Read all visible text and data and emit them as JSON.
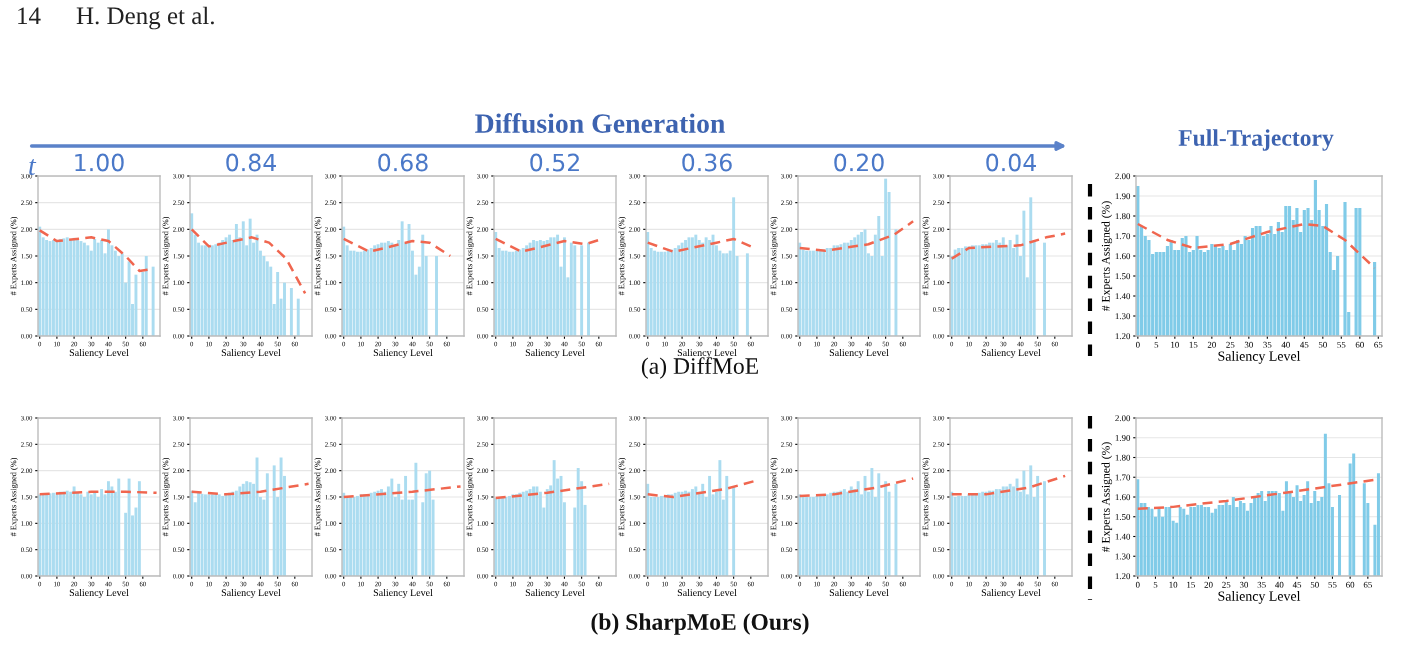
{
  "chart_data": [
    {
      "type": "bar",
      "title": "1.00",
      "annotations": [
        "14",
        "H. Deng et al.",
        "Diffusion Generation",
        "t",
        "Full-Trajectory",
        "(a) DiffMoE",
        "(b) SharpMoE (Ours)"
      ],
      "xlabel": "Saliency Level",
      "ylabel": "# Experts Assigned (%)",
      "x": [
        0,
        2,
        4,
        6,
        8,
        10,
        12,
        14,
        16,
        18,
        20,
        22,
        24,
        26,
        28,
        30,
        32,
        34,
        36,
        38,
        40,
        42,
        44,
        46,
        48,
        50,
        52,
        54,
        56,
        58,
        60,
        62,
        64,
        66
      ],
      "xlim": [
        -1,
        70
      ],
      "ylim": [
        0,
        3
      ],
      "xticks": [
        0,
        10,
        20,
        30,
        40,
        50,
        60
      ],
      "yticks": [
        {
          "value": 0,
          "label": "0.00"
        },
        {
          "value": 0.5,
          "label": "0.50"
        },
        {
          "value": 1,
          "label": "1.00"
        },
        {
          "value": 1.5,
          "label": "1.50"
        },
        {
          "value": 2,
          "label": "2.00"
        },
        {
          "value": 2.5,
          "label": "2.50"
        },
        {
          "value": 3,
          "label": "3.00"
        }
      ],
      "grid": "y",
      "series": [
        {
          "type": "bar",
          "color": "#abdcf0",
          "values": [
            2.05,
            1.85,
            1.8,
            1.78,
            1.8,
            1.8,
            1.82,
            1.83,
            1.85,
            1.82,
            1.84,
            1.8,
            1.78,
            1.75,
            1.7,
            1.6,
            1.82,
            1.75,
            1.8,
            1.55,
            2.0,
            1.7,
            1.6,
            1.5,
            1.55,
            1.0,
            1.4,
            0.6,
            1.15,
            null,
            1.2,
            1.5,
            null,
            1.3
          ]
        },
        {
          "type": "line",
          "color": "#f0664f",
          "line_style": "dashed",
          "x": [
            0,
            10,
            30,
            40,
            50,
            58,
            64
          ],
          "values": [
            1.98,
            1.78,
            1.85,
            1.78,
            1.5,
            1.22,
            1.25
          ]
        }
      ]
    },
    {
      "type": "bar",
      "title": "0.84",
      "xlabel": "Saliency Level",
      "ylabel": "# Experts Assigned (%)",
      "x": [
        0,
        2,
        4,
        6,
        8,
        10,
        12,
        14,
        16,
        18,
        20,
        22,
        24,
        26,
        28,
        30,
        32,
        34,
        36,
        38,
        40,
        42,
        44,
        46,
        48,
        50,
        52,
        54,
        56,
        58,
        60,
        62
      ],
      "xlim": [
        -1,
        70
      ],
      "ylim": [
        0,
        3
      ],
      "xticks": [
        0,
        10,
        20,
        30,
        40,
        50,
        60
      ],
      "yticks": [
        {
          "value": 0,
          "label": "0.00"
        },
        {
          "value": 0.5,
          "label": "0.50"
        },
        {
          "value": 1,
          "label": "1.00"
        },
        {
          "value": 1.5,
          "label": "1.50"
        },
        {
          "value": 2,
          "label": "2.00"
        },
        {
          "value": 2.5,
          "label": "2.50"
        },
        {
          "value": 3,
          "label": "3.00"
        }
      ],
      "grid": "y",
      "series": [
        {
          "type": "bar",
          "color": "#abdcf0",
          "values": [
            2.3,
            1.9,
            1.75,
            1.7,
            1.7,
            1.68,
            1.7,
            1.72,
            1.75,
            1.8,
            1.85,
            1.9,
            1.8,
            2.1,
            1.85,
            2.15,
            1.7,
            2.2,
            1.75,
            1.9,
            1.6,
            1.5,
            1.4,
            1.3,
            0.6,
            1.2,
            0.7,
            1.0,
            null,
            0.9,
            null,
            0.7
          ]
        },
        {
          "type": "line",
          "color": "#f0664f",
          "line_style": "dashed",
          "x": [
            0,
            10,
            35,
            45,
            55,
            66
          ],
          "values": [
            2.0,
            1.68,
            1.85,
            1.75,
            1.45,
            0.8
          ]
        }
      ]
    },
    {
      "type": "bar",
      "title": "0.68",
      "xlabel": "Saliency Level",
      "ylabel": "# Experts Assigned (%)",
      "x": [
        0,
        2,
        4,
        6,
        8,
        10,
        12,
        14,
        16,
        18,
        20,
        22,
        24,
        26,
        28,
        30,
        32,
        34,
        36,
        38,
        40,
        42,
        44,
        46,
        48,
        50,
        52,
        54
      ],
      "xlim": [
        -1,
        70
      ],
      "ylim": [
        0,
        3
      ],
      "xticks": [
        0,
        10,
        20,
        30,
        40,
        50,
        60
      ],
      "yticks": [
        {
          "value": 0,
          "label": "0.00"
        },
        {
          "value": 0.5,
          "label": "0.50"
        },
        {
          "value": 1,
          "label": "1.00"
        },
        {
          "value": 1.5,
          "label": "1.50"
        },
        {
          "value": 2,
          "label": "2.00"
        },
        {
          "value": 2.5,
          "label": "2.50"
        },
        {
          "value": 3,
          "label": "3.00"
        }
      ],
      "grid": "y",
      "series": [
        {
          "type": "bar",
          "color": "#abdcf0",
          "values": [
            2.05,
            1.7,
            1.6,
            1.6,
            1.58,
            1.58,
            1.6,
            1.62,
            1.65,
            1.7,
            1.72,
            1.75,
            1.75,
            1.78,
            1.75,
            1.7,
            1.8,
            2.15,
            1.75,
            2.1,
            1.6,
            1.15,
            1.3,
            1.9,
            1.5,
            null,
            null,
            1.5
          ]
        },
        {
          "type": "line",
          "color": "#f0664f",
          "line_style": "dashed",
          "x": [
            0,
            15,
            40,
            50,
            62
          ],
          "values": [
            1.82,
            1.58,
            1.78,
            1.75,
            1.5
          ]
        }
      ]
    },
    {
      "type": "bar",
      "title": "0.52",
      "xlabel": "Saliency Level",
      "ylabel": "# Experts Assigned (%)",
      "x": [
        0,
        2,
        4,
        6,
        8,
        10,
        12,
        14,
        16,
        18,
        20,
        22,
        24,
        26,
        28,
        30,
        32,
        34,
        36,
        38,
        40,
        42,
        44,
        46,
        48,
        50,
        52,
        54
      ],
      "xlim": [
        -1,
        70
      ],
      "ylim": [
        0,
        3
      ],
      "xticks": [
        0,
        10,
        20,
        30,
        40,
        50,
        60
      ],
      "yticks": [
        {
          "value": 0,
          "label": "0.00"
        },
        {
          "value": 0.5,
          "label": "0.50"
        },
        {
          "value": 1,
          "label": "1.00"
        },
        {
          "value": 1.5,
          "label": "1.50"
        },
        {
          "value": 2,
          "label": "2.00"
        },
        {
          "value": 2.5,
          "label": "2.50"
        },
        {
          "value": 3,
          "label": "3.00"
        }
      ],
      "grid": "y",
      "series": [
        {
          "type": "bar",
          "color": "#abdcf0",
          "values": [
            1.95,
            1.65,
            1.6,
            1.6,
            1.58,
            1.58,
            1.6,
            1.62,
            1.65,
            1.7,
            1.75,
            1.8,
            1.78,
            1.8,
            1.78,
            1.8,
            1.85,
            1.85,
            1.9,
            1.3,
            1.85,
            1.1,
            1.75,
            1.7,
            null,
            1.7,
            null,
            1.75
          ]
        },
        {
          "type": "line",
          "color": "#f0664f",
          "line_style": "dashed",
          "x": [
            0,
            15,
            40,
            52,
            60
          ],
          "values": [
            1.82,
            1.58,
            1.78,
            1.72,
            1.8
          ]
        }
      ]
    },
    {
      "type": "bar",
      "title": "0.36",
      "xlabel": "Saliency Level",
      "ylabel": "# Experts Assigned (%)",
      "x": [
        0,
        2,
        4,
        6,
        8,
        10,
        12,
        14,
        16,
        18,
        20,
        22,
        24,
        26,
        28,
        30,
        32,
        34,
        36,
        38,
        40,
        42,
        44,
        46,
        48,
        50,
        52,
        54,
        56,
        58
      ],
      "xlim": [
        -1,
        70
      ],
      "ylim": [
        0,
        3
      ],
      "xticks": [
        0,
        10,
        20,
        30,
        40,
        50,
        60
      ],
      "yticks": [
        {
          "value": 0,
          "label": "0.00"
        },
        {
          "value": 0.5,
          "label": "0.50"
        },
        {
          "value": 1,
          "label": "1.00"
        },
        {
          "value": 1.5,
          "label": "1.50"
        },
        {
          "value": 2,
          "label": "2.00"
        },
        {
          "value": 2.5,
          "label": "2.50"
        },
        {
          "value": 3,
          "label": "3.00"
        }
      ],
      "grid": "y",
      "series": [
        {
          "type": "bar",
          "color": "#abdcf0",
          "values": [
            1.95,
            1.65,
            1.6,
            1.58,
            1.58,
            1.58,
            1.6,
            1.62,
            1.65,
            1.7,
            1.75,
            1.8,
            1.85,
            1.85,
            1.9,
            1.8,
            1.75,
            1.85,
            1.8,
            1.9,
            1.7,
            1.6,
            1.55,
            1.55,
            1.6,
            2.6,
            1.5,
            null,
            null,
            1.55
          ]
        },
        {
          "type": "line",
          "color": "#f0664f",
          "line_style": "dashed",
          "x": [
            0,
            15,
            40,
            50,
            62
          ],
          "values": [
            1.75,
            1.58,
            1.75,
            1.82,
            1.65
          ]
        }
      ]
    },
    {
      "type": "bar",
      "title": "0.20",
      "xlabel": "Saliency Level",
      "ylabel": "# Experts Assigned (%)",
      "x": [
        0,
        2,
        4,
        6,
        8,
        10,
        12,
        14,
        16,
        18,
        20,
        22,
        24,
        26,
        28,
        30,
        32,
        34,
        36,
        38,
        40,
        42,
        44,
        46,
        48,
        50,
        52,
        54,
        56
      ],
      "xlim": [
        -1,
        70
      ],
      "ylim": [
        0,
        3
      ],
      "xticks": [
        0,
        10,
        20,
        30,
        40,
        50,
        60
      ],
      "yticks": [
        {
          "value": 0,
          "label": "0.00"
        },
        {
          "value": 0.5,
          "label": "0.50"
        },
        {
          "value": 1,
          "label": "1.00"
        },
        {
          "value": 1.5,
          "label": "1.50"
        },
        {
          "value": 2,
          "label": "2.00"
        },
        {
          "value": 2.5,
          "label": "2.50"
        },
        {
          "value": 3,
          "label": "3.00"
        }
      ],
      "grid": "y",
      "series": [
        {
          "type": "bar",
          "color": "#abdcf0",
          "values": [
            1.75,
            1.62,
            1.6,
            1.6,
            1.6,
            1.6,
            1.62,
            1.62,
            1.65,
            1.65,
            1.7,
            1.7,
            1.72,
            1.75,
            1.75,
            1.8,
            1.85,
            1.9,
            1.95,
            2.0,
            1.55,
            1.5,
            1.9,
            2.25,
            1.5,
            2.95,
            2.7,
            null,
            2.0
          ]
        },
        {
          "type": "line",
          "color": "#f0664f",
          "line_style": "dashed",
          "x": [
            0,
            15,
            40,
            55,
            66
          ],
          "values": [
            1.65,
            1.6,
            1.72,
            1.9,
            2.15
          ]
        }
      ]
    },
    {
      "type": "bar",
      "title": "0.04",
      "xlabel": "Saliency Level",
      "ylabel": "# Experts Assigned (%)",
      "x": [
        0,
        2,
        4,
        6,
        8,
        10,
        12,
        14,
        16,
        18,
        20,
        22,
        24,
        26,
        28,
        30,
        32,
        34,
        36,
        38,
        40,
        42,
        44,
        46,
        48,
        50,
        52,
        54
      ],
      "xlim": [
        -1,
        70
      ],
      "ylim": [
        0,
        3
      ],
      "xticks": [
        0,
        10,
        20,
        30,
        40,
        50,
        60
      ],
      "yticks": [
        {
          "value": 0,
          "label": "0.00"
        },
        {
          "value": 0.5,
          "label": "0.50"
        },
        {
          "value": 1,
          "label": "1.00"
        },
        {
          "value": 1.5,
          "label": "1.50"
        },
        {
          "value": 2,
          "label": "2.00"
        },
        {
          "value": 2.5,
          "label": "2.50"
        },
        {
          "value": 3,
          "label": "3.00"
        }
      ],
      "grid": "y",
      "series": [
        {
          "type": "bar",
          "color": "#abdcf0",
          "values": [
            1.5,
            1.62,
            1.65,
            1.65,
            1.68,
            1.68,
            1.7,
            1.7,
            1.7,
            1.72,
            1.72,
            1.75,
            1.75,
            1.8,
            1.75,
            1.85,
            1.7,
            1.8,
            1.65,
            1.9,
            1.5,
            2.35,
            1.1,
            2.6,
            1.8,
            null,
            null,
            1.75
          ]
        },
        {
          "type": "line",
          "color": "#f0664f",
          "line_style": "dashed",
          "x": [
            0,
            10,
            40,
            55,
            66
          ],
          "values": [
            1.45,
            1.65,
            1.7,
            1.85,
            1.92
          ]
        }
      ]
    },
    {
      "type": "bar",
      "xlabel": "Saliency Level",
      "ylabel": "# Experts Assigned (%)",
      "x": [
        0,
        1,
        2,
        3,
        4,
        5,
        6,
        7,
        8,
        9,
        10,
        11,
        12,
        13,
        14,
        15,
        16,
        17,
        18,
        19,
        20,
        21,
        22,
        23,
        24,
        25,
        26,
        27,
        28,
        29,
        30,
        31,
        32,
        33,
        34,
        35,
        36,
        37,
        38,
        39,
        40,
        41,
        42,
        43,
        44,
        45,
        46,
        47,
        48,
        49,
        50,
        51,
        52,
        53,
        54,
        55,
        56,
        57,
        58,
        59,
        60,
        61,
        62,
        63,
        64
      ],
      "xlim": [
        -0.5,
        66
      ],
      "ylim": [
        1.2,
        2.0
      ],
      "xticks": [
        0,
        5,
        10,
        15,
        20,
        25,
        30,
        35,
        40,
        45,
        50,
        55,
        60,
        65
      ],
      "yticks": [
        {
          "value": 1.2,
          "label": "1.20"
        },
        {
          "value": 1.3,
          "label": "1.30"
        },
        {
          "value": 1.4,
          "label": "1.40"
        },
        {
          "value": 1.5,
          "label": "1.50"
        },
        {
          "value": 1.6,
          "label": "1.60"
        },
        {
          "value": 1.7,
          "label": "1.70"
        },
        {
          "value": 1.8,
          "label": "1.80"
        },
        {
          "value": 1.9,
          "label": "1.90"
        },
        {
          "value": 2.0,
          "label": "2.00"
        }
      ],
      "grid": "y",
      "series": [
        {
          "type": "bar",
          "color": "#80cbe8",
          "values": [
            1.95,
            1.75,
            1.7,
            1.68,
            1.61,
            1.62,
            1.62,
            1.62,
            1.65,
            1.68,
            1.63,
            1.63,
            1.69,
            1.7,
            1.62,
            1.63,
            1.7,
            1.63,
            1.62,
            1.63,
            1.66,
            1.65,
            1.64,
            1.65,
            1.63,
            1.66,
            1.63,
            1.68,
            1.66,
            1.7,
            1.68,
            1.74,
            1.75,
            1.75,
            1.7,
            1.71,
            1.75,
            1.71,
            1.77,
            1.72,
            1.85,
            1.85,
            1.78,
            1.84,
            1.72,
            1.83,
            1.84,
            1.78,
            1.98,
            1.83,
            1.75,
            1.86,
            1.62,
            1.53,
            1.6,
            null,
            1.87,
            1.32,
            null,
            1.84,
            1.84,
            null,
            null,
            null,
            1.57
          ]
        },
        {
          "type": "line",
          "color": "#f0664f",
          "line_style": "dashed",
          "x": [
            0,
            8,
            15,
            25,
            35,
            45,
            50,
            56,
            64
          ],
          "values": [
            1.76,
            1.68,
            1.64,
            1.66,
            1.72,
            1.76,
            1.75,
            1.68,
            1.54
          ]
        }
      ]
    },
    {
      "type": "bar",
      "xlabel": "Saliency Level",
      "ylabel": "# Experts Assigned (%)",
      "x": [
        0,
        2,
        4,
        6,
        8,
        10,
        12,
        14,
        16,
        18,
        20,
        22,
        24,
        26,
        28,
        30,
        32,
        34,
        36,
        38,
        40,
        42,
        44,
        46,
        48,
        50,
        52,
        54,
        56,
        58
      ],
      "xlim": [
        -1,
        70
      ],
      "ylim": [
        0,
        3
      ],
      "xticks": [
        0,
        10,
        20,
        30,
        40,
        50,
        60
      ],
      "yticks": [
        {
          "value": 0,
          "label": "0.00"
        },
        {
          "value": 0.5,
          "label": "0.50"
        },
        {
          "value": 1,
          "label": "1.00"
        },
        {
          "value": 1.5,
          "label": "1.50"
        },
        {
          "value": 2,
          "label": "2.00"
        },
        {
          "value": 2.5,
          "label": "2.50"
        },
        {
          "value": 3,
          "label": "3.00"
        }
      ],
      "grid": "y",
      "series": [
        {
          "type": "bar",
          "color": "#abdcf0",
          "values": [
            1.55,
            1.55,
            1.56,
            1.57,
            1.58,
            1.58,
            1.6,
            1.6,
            1.62,
            1.6,
            1.7,
            1.58,
            1.55,
            1.5,
            1.6,
            1.55,
            1.6,
            1.5,
            1.65,
            1.55,
            1.8,
            1.7,
            1.6,
            1.85,
            null,
            1.2,
            1.85,
            1.15,
            1.3,
            1.8
          ]
        },
        {
          "type": "line",
          "color": "#f0664f",
          "line_style": "dashed",
          "x": [
            0,
            30,
            50,
            68
          ],
          "values": [
            1.55,
            1.6,
            1.6,
            1.58
          ]
        }
      ]
    },
    {
      "type": "bar",
      "xlabel": "Saliency Level",
      "ylabel": "# Experts Assigned (%)",
      "x": [
        0,
        2,
        4,
        6,
        8,
        10,
        12,
        14,
        16,
        18,
        20,
        22,
        24,
        26,
        28,
        30,
        32,
        34,
        36,
        38,
        40,
        42,
        44,
        46,
        48,
        50,
        52,
        54
      ],
      "xlim": [
        -1,
        70
      ],
      "ylim": [
        0,
        3
      ],
      "xticks": [
        0,
        10,
        20,
        30,
        40,
        50,
        60
      ],
      "yticks": [
        {
          "value": 0,
          "label": "0.00"
        },
        {
          "value": 0.5,
          "label": "0.50"
        },
        {
          "value": 1,
          "label": "1.00"
        },
        {
          "value": 1.5,
          "label": "1.50"
        },
        {
          "value": 2,
          "label": "2.00"
        },
        {
          "value": 2.5,
          "label": "2.50"
        },
        {
          "value": 3,
          "label": "3.00"
        }
      ],
      "grid": "y",
      "series": [
        {
          "type": "bar",
          "color": "#abdcf0",
          "values": [
            1.62,
            1.4,
            1.58,
            1.56,
            1.55,
            1.55,
            1.55,
            1.55,
            1.55,
            1.52,
            1.55,
            1.58,
            1.6,
            1.62,
            1.7,
            1.75,
            1.8,
            1.78,
            1.75,
            2.25,
            1.5,
            1.45,
            1.95,
            null,
            2.1,
            1.5,
            2.25,
            1.9
          ]
        },
        {
          "type": "line",
          "color": "#f0664f",
          "line_style": "dashed",
          "x": [
            0,
            20,
            40,
            68
          ],
          "values": [
            1.6,
            1.55,
            1.6,
            1.75
          ]
        }
      ]
    },
    {
      "type": "bar",
      "xlabel": "Saliency Level",
      "ylabel": "# Experts Assigned (%)",
      "x": [
        0,
        2,
        4,
        6,
        8,
        10,
        12,
        14,
        16,
        18,
        20,
        22,
        24,
        26,
        28,
        30,
        32,
        34,
        36,
        38,
        40,
        42,
        44,
        46,
        48,
        50,
        52
      ],
      "xlim": [
        -1,
        70
      ],
      "ylim": [
        0,
        3
      ],
      "xticks": [
        0,
        10,
        20,
        30,
        40,
        50,
        60
      ],
      "yticks": [
        {
          "value": 0,
          "label": "0.00"
        },
        {
          "value": 0.5,
          "label": "0.50"
        },
        {
          "value": 1,
          "label": "1.00"
        },
        {
          "value": 1.5,
          "label": "1.50"
        },
        {
          "value": 2,
          "label": "2.00"
        },
        {
          "value": 2.5,
          "label": "2.50"
        },
        {
          "value": 3,
          "label": "3.00"
        }
      ],
      "grid": "y",
      "series": [
        {
          "type": "bar",
          "color": "#abdcf0",
          "values": [
            1.58,
            1.52,
            1.5,
            1.5,
            1.52,
            1.55,
            1.55,
            1.55,
            1.58,
            1.6,
            1.62,
            1.65,
            1.6,
            1.7,
            1.85,
            1.5,
            1.75,
            1.45,
            1.9,
            1.45,
            1.45,
            2.15,
            null,
            1.4,
            1.95,
            2.0,
            1.45
          ]
        },
        {
          "type": "line",
          "color": "#f0664f",
          "line_style": "dashed",
          "x": [
            0,
            40,
            68
          ],
          "values": [
            1.5,
            1.6,
            1.7
          ]
        }
      ]
    },
    {
      "type": "bar",
      "xlabel": "Saliency Level",
      "ylabel": "# Experts Assigned (%)",
      "x": [
        0,
        2,
        4,
        6,
        8,
        10,
        12,
        14,
        16,
        18,
        20,
        22,
        24,
        26,
        28,
        30,
        32,
        34,
        36,
        38,
        40,
        42,
        44,
        46,
        48,
        50,
        52
      ],
      "xlim": [
        -1,
        70
      ],
      "ylim": [
        0,
        3
      ],
      "xticks": [
        0,
        10,
        20,
        30,
        40,
        50,
        60
      ],
      "yticks": [
        {
          "value": 0,
          "label": "0.00"
        },
        {
          "value": 0.5,
          "label": "0.50"
        },
        {
          "value": 1,
          "label": "1.00"
        },
        {
          "value": 1.5,
          "label": "1.50"
        },
        {
          "value": 2,
          "label": "2.00"
        },
        {
          "value": 2.5,
          "label": "2.50"
        },
        {
          "value": 3,
          "label": "3.00"
        }
      ],
      "grid": "y",
      "series": [
        {
          "type": "bar",
          "color": "#abdcf0",
          "values": [
            1.48,
            1.48,
            1.5,
            1.5,
            1.52,
            1.55,
            1.55,
            1.58,
            1.6,
            1.62,
            1.65,
            1.7,
            1.7,
            1.6,
            1.3,
            1.65,
            1.72,
            2.2,
            1.85,
            1.9,
            1.4,
            null,
            null,
            1.3,
            2.05,
            1.8,
            1.35
          ]
        },
        {
          "type": "line",
          "color": "#f0664f",
          "line_style": "dashed",
          "x": [
            0,
            30,
            66
          ],
          "values": [
            1.48,
            1.58,
            1.75
          ]
        }
      ]
    },
    {
      "type": "bar",
      "xlabel": "Saliency Level",
      "ylabel": "# Experts Assigned (%)",
      "x": [
        0,
        2,
        4,
        6,
        8,
        10,
        12,
        14,
        16,
        18,
        20,
        22,
        24,
        26,
        28,
        30,
        32,
        34,
        36,
        38,
        40,
        42,
        44,
        46,
        48,
        50
      ],
      "xlim": [
        -1,
        70
      ],
      "ylim": [
        0,
        3
      ],
      "xticks": [
        0,
        10,
        20,
        30,
        40,
        50,
        60
      ],
      "yticks": [
        {
          "value": 0,
          "label": "0.00"
        },
        {
          "value": 0.5,
          "label": "0.50"
        },
        {
          "value": 1,
          "label": "1.00"
        },
        {
          "value": 1.5,
          "label": "1.50"
        },
        {
          "value": 2,
          "label": "2.00"
        },
        {
          "value": 2.5,
          "label": "2.50"
        },
        {
          "value": 3,
          "label": "3.00"
        }
      ],
      "grid": "y",
      "series": [
        {
          "type": "bar",
          "color": "#abdcf0",
          "values": [
            1.75,
            1.5,
            1.5,
            1.5,
            1.52,
            1.52,
            1.55,
            1.55,
            1.58,
            1.6,
            1.6,
            1.62,
            1.6,
            1.65,
            1.7,
            1.6,
            1.75,
            1.5,
            1.9,
            1.55,
            1.6,
            2.2,
            1.45,
            1.9,
            null,
            1.7
          ]
        },
        {
          "type": "line",
          "color": "#f0664f",
          "line_style": "dashed",
          "x": [
            0,
            15,
            45,
            62
          ],
          "values": [
            1.55,
            1.5,
            1.65,
            1.8
          ]
        }
      ]
    },
    {
      "type": "bar",
      "xlabel": "Saliency Level",
      "ylabel": "# Experts Assigned (%)",
      "x": [
        0,
        2,
        4,
        6,
        8,
        10,
        12,
        14,
        16,
        18,
        20,
        22,
        24,
        26,
        28,
        30,
        32,
        34,
        36,
        38,
        40,
        42,
        44,
        46,
        48,
        50,
        52,
        54,
        56
      ],
      "xlim": [
        -1,
        70
      ],
      "ylim": [
        0,
        3
      ],
      "xticks": [
        0,
        10,
        20,
        30,
        40,
        50,
        60
      ],
      "yticks": [
        {
          "value": 0,
          "label": "0.00"
        },
        {
          "value": 0.5,
          "label": "0.50"
        },
        {
          "value": 1,
          "label": "1.00"
        },
        {
          "value": 1.5,
          "label": "1.50"
        },
        {
          "value": 2,
          "label": "2.00"
        },
        {
          "value": 2.5,
          "label": "2.50"
        },
        {
          "value": 3,
          "label": "3.00"
        }
      ],
      "grid": "y",
      "series": [
        {
          "type": "bar",
          "color": "#abdcf0",
          "values": [
            1.55,
            1.5,
            1.5,
            1.5,
            1.5,
            1.52,
            1.52,
            1.55,
            1.55,
            1.58,
            1.6,
            1.6,
            1.62,
            1.65,
            1.6,
            1.7,
            1.65,
            1.8,
            1.55,
            1.9,
            1.6,
            2.05,
            1.5,
            1.95,
            null,
            1.8,
            1.6,
            null,
            1.75
          ]
        },
        {
          "type": "line",
          "color": "#f0664f",
          "line_style": "dashed",
          "x": [
            0,
            20,
            45,
            66
          ],
          "values": [
            1.52,
            1.55,
            1.68,
            1.85
          ]
        }
      ]
    },
    {
      "type": "bar",
      "xlabel": "Saliency Level",
      "ylabel": "# Experts Assigned (%)",
      "x": [
        0,
        2,
        4,
        6,
        8,
        10,
        12,
        14,
        16,
        18,
        20,
        22,
        24,
        26,
        28,
        30,
        32,
        34,
        36,
        38,
        40,
        42,
        44,
        46,
        48,
        50,
        52,
        54
      ],
      "xlim": [
        -1,
        70
      ],
      "ylim": [
        0,
        3
      ],
      "xticks": [
        0,
        10,
        20,
        30,
        40,
        50,
        60
      ],
      "yticks": [
        {
          "value": 0,
          "label": "0.00"
        },
        {
          "value": 0.5,
          "label": "0.50"
        },
        {
          "value": 1,
          "label": "1.00"
        },
        {
          "value": 1.5,
          "label": "1.50"
        },
        {
          "value": 2,
          "label": "2.00"
        },
        {
          "value": 2.5,
          "label": "2.50"
        },
        {
          "value": 3,
          "label": "3.00"
        }
      ],
      "grid": "y",
      "series": [
        {
          "type": "bar",
          "color": "#abdcf0",
          "values": [
            1.6,
            1.5,
            1.52,
            1.52,
            1.52,
            1.55,
            1.55,
            1.55,
            1.58,
            1.6,
            1.6,
            1.62,
            1.62,
            1.65,
            1.65,
            1.7,
            1.7,
            1.75,
            1.7,
            1.85,
            1.6,
            2.0,
            1.55,
            2.1,
            1.5,
            1.9,
            null,
            1.8
          ]
        },
        {
          "type": "line",
          "color": "#f0664f",
          "line_style": "dashed",
          "x": [
            0,
            20,
            45,
            66
          ],
          "values": [
            1.55,
            1.55,
            1.68,
            1.9
          ]
        }
      ]
    },
    {
      "type": "bar",
      "xlabel": "Saliency Level",
      "ylabel": "# Experts Assigned (%)",
      "x": [
        0,
        1,
        2,
        3,
        4,
        5,
        6,
        7,
        8,
        9,
        10,
        11,
        12,
        13,
        14,
        15,
        16,
        17,
        18,
        19,
        20,
        21,
        22,
        23,
        24,
        25,
        26,
        27,
        28,
        29,
        30,
        31,
        32,
        33,
        34,
        35,
        36,
        37,
        38,
        39,
        40,
        41,
        42,
        43,
        44,
        45,
        46,
        47,
        48,
        49,
        50,
        51,
        52,
        53,
        54,
        55,
        56,
        57,
        58,
        59,
        60,
        61,
        62,
        63,
        64,
        65,
        66,
        67,
        68
      ],
      "xlim": [
        -0.5,
        69
      ],
      "ylim": [
        1.2,
        2.0
      ],
      "xticks": [
        0,
        5,
        10,
        15,
        20,
        25,
        30,
        35,
        40,
        45,
        50,
        55,
        60,
        65
      ],
      "yticks": [
        {
          "value": 1.2,
          "label": "1.20"
        },
        {
          "value": 1.3,
          "label": "1.30"
        },
        {
          "value": 1.4,
          "label": "1.40"
        },
        {
          "value": 1.5,
          "label": "1.50"
        },
        {
          "value": 1.6,
          "label": "1.60"
        },
        {
          "value": 1.7,
          "label": "1.70"
        },
        {
          "value": 1.8,
          "label": "1.80"
        },
        {
          "value": 1.9,
          "label": "1.90"
        },
        {
          "value": 2.0,
          "label": "2.00"
        }
      ],
      "grid": "y",
      "series": [
        {
          "type": "bar",
          "color": "#80cbe8",
          "values": [
            1.69,
            1.57,
            1.57,
            1.55,
            1.54,
            1.5,
            1.55,
            1.5,
            1.55,
            1.55,
            1.48,
            1.47,
            1.55,
            1.54,
            1.51,
            1.55,
            1.55,
            1.56,
            1.56,
            1.55,
            1.55,
            1.52,
            1.54,
            1.56,
            1.56,
            1.58,
            1.56,
            1.6,
            1.55,
            1.58,
            1.57,
            1.53,
            1.57,
            1.6,
            1.62,
            1.63,
            1.58,
            1.63,
            1.63,
            1.63,
            1.62,
            1.53,
            1.68,
            1.63,
            1.6,
            1.66,
            1.58,
            1.61,
            1.68,
            1.57,
            1.63,
            1.58,
            1.6,
            1.92,
            1.67,
            1.55,
            null,
            1.61,
            null,
            null,
            1.77,
            1.82,
            null,
            null,
            1.67,
            1.57,
            null,
            1.46,
            1.72
          ]
        },
        {
          "type": "line",
          "color": "#f0664f",
          "line_style": "dashed",
          "x": [
            0,
            10,
            25,
            45,
            68
          ],
          "values": [
            1.54,
            1.55,
            1.58,
            1.63,
            1.69
          ]
        }
      ]
    }
  ]
}
